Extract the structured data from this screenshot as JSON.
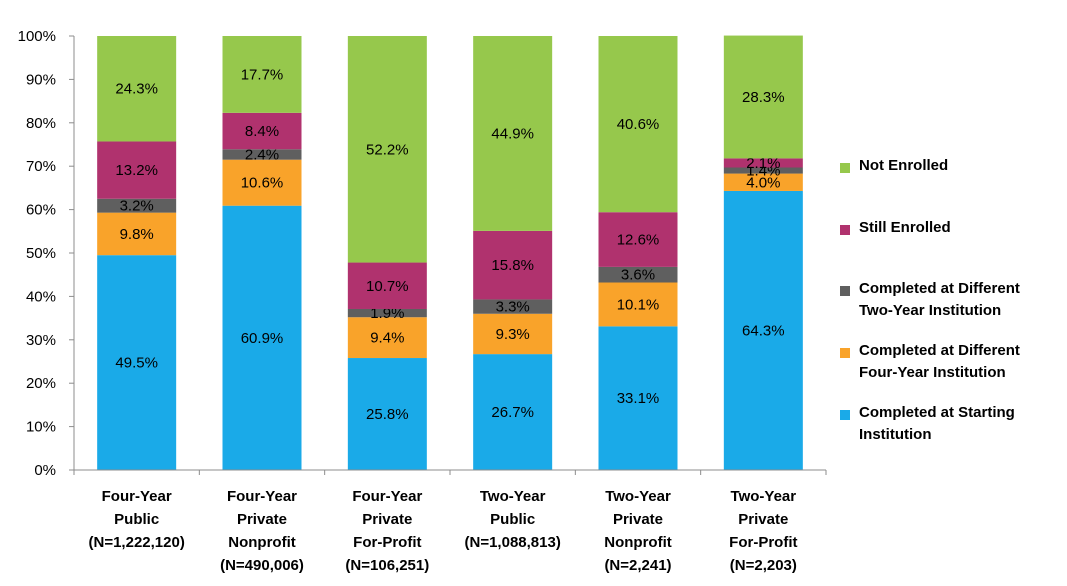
{
  "chart_data": {
    "type": "bar",
    "stacked": true,
    "title": "",
    "xlabel": "",
    "ylabel": "",
    "ylim": [
      0,
      100
    ],
    "ytick_labels": [
      "0%",
      "10%",
      "20%",
      "30%",
      "40%",
      "50%",
      "60%",
      "70%",
      "80%",
      "90%",
      "100%"
    ],
    "categories": [
      [
        "Four-Year",
        "Public",
        "(N=1,222,120)"
      ],
      [
        "Four-Year",
        "Private",
        "Nonprofit",
        "(N=490,006)"
      ],
      [
        "Four-Year",
        "Private",
        "For-Profit",
        "(N=106,251)"
      ],
      [
        "Two-Year",
        "Public",
        "(N=1,088,813)"
      ],
      [
        "Two-Year",
        "Private",
        "Nonprofit",
        "(N=2,241)"
      ],
      [
        "Two-Year",
        "Private",
        "For-Profit",
        "(N=2,203)"
      ]
    ],
    "series": [
      {
        "name": "Completed at Starting Institution",
        "color": "#1aaae8",
        "values": [
          49.5,
          60.9,
          25.8,
          26.7,
          33.1,
          64.3
        ],
        "labels": [
          "49.5%",
          "60.9%",
          "25.8%",
          "26.7%",
          "33.1%",
          "64.3%"
        ],
        "label_color": "#000000"
      },
      {
        "name": "Completed at Different Four-Year Institution",
        "color": "#f9a32a",
        "values": [
          9.8,
          10.6,
          9.4,
          9.3,
          10.1,
          4.0
        ],
        "labels": [
          "9.8%",
          "10.6%",
          "9.4%",
          "9.3%",
          "10.1%",
          "4.0%"
        ],
        "label_color": "#000000"
      },
      {
        "name": "Completed at Different Two-Year Institution",
        "color": "#5f5f5f",
        "values": [
          3.2,
          2.4,
          1.9,
          3.3,
          3.6,
          1.4
        ],
        "labels": [
          "3.2%",
          "2.4%",
          "1.9%",
          "3.3%",
          "3.6%",
          "1.4%"
        ],
        "label_color": "#ffffff"
      },
      {
        "name": "Still Enrolled",
        "color": "#b0326e",
        "values": [
          13.2,
          8.4,
          10.7,
          15.8,
          12.6,
          2.1
        ],
        "labels": [
          "13.2%",
          "8.4%",
          "10.7%",
          "15.8%",
          "12.6%",
          "2.1%"
        ],
        "label_color": "#000000"
      },
      {
        "name": "Not Enrolled",
        "color": "#96c84c",
        "values": [
          24.3,
          17.7,
          52.2,
          44.9,
          40.6,
          28.3
        ],
        "labels": [
          "24.3%",
          "17.7%",
          "52.2%",
          "44.9%",
          "40.6%",
          "28.3%"
        ],
        "label_color": "#000000"
      }
    ],
    "legend": {
      "position": "right",
      "order": [
        {
          "series": 4,
          "text": "Not Enrolled"
        },
        {
          "series": 3,
          "text": "Still Enrolled"
        },
        {
          "series": 2,
          "text": "Completed at Different\nTwo-Year Institution"
        },
        {
          "series": 1,
          "text": "Completed at Different\nFour-Year Institution"
        },
        {
          "series": 0,
          "text": "Completed at Starting\nInstitution"
        }
      ]
    }
  }
}
